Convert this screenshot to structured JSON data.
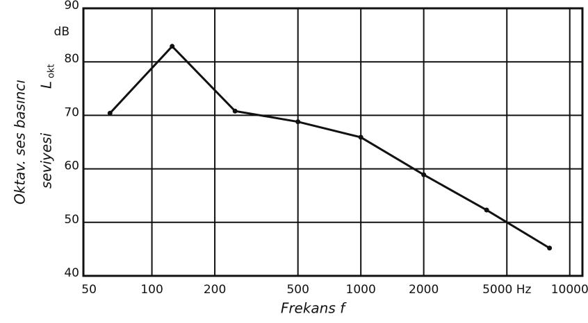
{
  "chart_data": {
    "type": "line",
    "ylabel_lines": [
      "Oktav. ses basıncı",
      "seviyesi"
    ],
    "symbol": "L",
    "symbol_sub": "okt",
    "y_unit": "dB",
    "xlabel": "Frekans f",
    "x": [
      63,
      125,
      250,
      500,
      1000,
      2000,
      4000,
      8000
    ],
    "series": [
      {
        "name": "Lokt",
        "color": "#111111",
        "values": [
          70.4,
          82.9,
          70.8,
          68.8,
          65.9,
          58.9,
          52.3,
          45.2
        ]
      }
    ],
    "xscale": "log",
    "xlim": [
      47,
      11500
    ],
    "xticks": [
      50,
      100,
      200,
      500,
      1000,
      2000,
      {
        "value": 5000,
        "label": "5000 Hz"
      },
      10000
    ],
    "ylim": [
      40,
      90
    ],
    "yticks": [
      40,
      50,
      60,
      70,
      80,
      90
    ],
    "grid": true
  }
}
